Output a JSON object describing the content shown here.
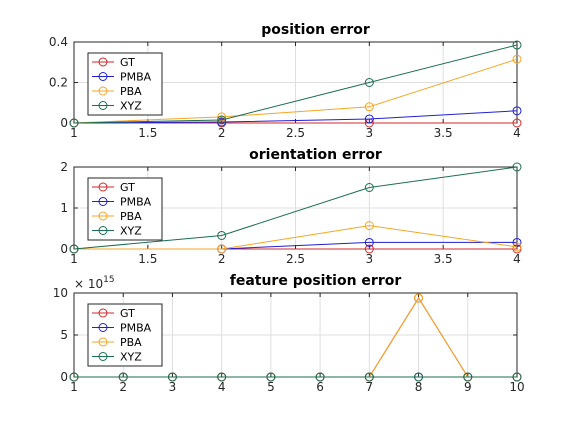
{
  "chart_data": [
    {
      "type": "line",
      "title": "position error",
      "xlim": [
        1,
        4
      ],
      "ylim": [
        0,
        0.4
      ],
      "xticks": [
        "1",
        "1.5",
        "2",
        "2.5",
        "3",
        "3.5",
        "4"
      ],
      "yticks": [
        "0",
        "0.2",
        "0.4"
      ],
      "exponent": "",
      "grid": true,
      "legend": "top-left",
      "x": [
        1,
        2,
        3,
        4
      ],
      "series": [
        {
          "name": "GT",
          "color": "#d62728",
          "values": [
            0,
            0,
            0,
            0
          ]
        },
        {
          "name": "PMBA",
          "color": "#1f1fd6",
          "values": [
            0,
            0.005,
            0.02,
            0.06
          ]
        },
        {
          "name": "PBA",
          "color": "#f5a623",
          "values": [
            0,
            0.03,
            0.08,
            0.315
          ]
        },
        {
          "name": "XYZ",
          "color": "#1b6e4f",
          "values": [
            0,
            0.015,
            0.2,
            0.385
          ]
        }
      ]
    },
    {
      "type": "line",
      "title": "orientation error",
      "xlim": [
        1,
        4
      ],
      "ylim": [
        0,
        2
      ],
      "xticks": [
        "1",
        "1.5",
        "2",
        "2.5",
        "3",
        "3.5",
        "4"
      ],
      "yticks": [
        "0",
        "1",
        "2"
      ],
      "exponent": "",
      "grid": true,
      "legend": "top-left",
      "x": [
        1,
        2,
        3,
        4
      ],
      "series": [
        {
          "name": "GT",
          "color": "#d62728",
          "values": [
            0,
            0,
            0,
            0
          ]
        },
        {
          "name": "PMBA",
          "color": "#1f1fd6",
          "values": [
            0,
            0,
            0.16,
            0.16
          ]
        },
        {
          "name": "PBA",
          "color": "#f5a623",
          "values": [
            0,
            0,
            0.57,
            0.05
          ]
        },
        {
          "name": "XYZ",
          "color": "#1b6e4f",
          "values": [
            0,
            0.33,
            1.5,
            2.0
          ]
        }
      ]
    },
    {
      "type": "line",
      "title": "feature position error",
      "xlim": [
        1,
        10
      ],
      "ylim": [
        0,
        1e+16
      ],
      "xticks": [
        "1",
        "2",
        "3",
        "4",
        "5",
        "6",
        "7",
        "8",
        "9",
        "10"
      ],
      "yticks": [
        "0",
        "5",
        "10"
      ],
      "yscale_factor": 1000000000000000.0,
      "exponent_base": "× 10",
      "exponent_power": "15",
      "grid": true,
      "legend": "top-left",
      "x": [
        1,
        2,
        3,
        4,
        5,
        6,
        7,
        8,
        9,
        10
      ],
      "series": [
        {
          "name": "GT",
          "color": "#d62728",
          "values": [
            0,
            0,
            0,
            0,
            0,
            0,
            0,
            9400000000000000.0,
            0,
            0
          ]
        },
        {
          "name": "PMBA",
          "color": "#1f1fd6",
          "values": [
            0,
            0,
            0,
            0,
            0,
            0,
            0,
            0,
            0,
            0
          ]
        },
        {
          "name": "PBA",
          "color": "#f5a623",
          "values": [
            0,
            0,
            0,
            0,
            0,
            0,
            0,
            9400000000000000.0,
            0,
            0
          ]
        },
        {
          "name": "XYZ",
          "color": "#1b6e4f",
          "values": [
            0,
            0,
            0,
            0,
            0,
            0,
            0,
            0,
            0,
            0
          ]
        }
      ]
    }
  ]
}
